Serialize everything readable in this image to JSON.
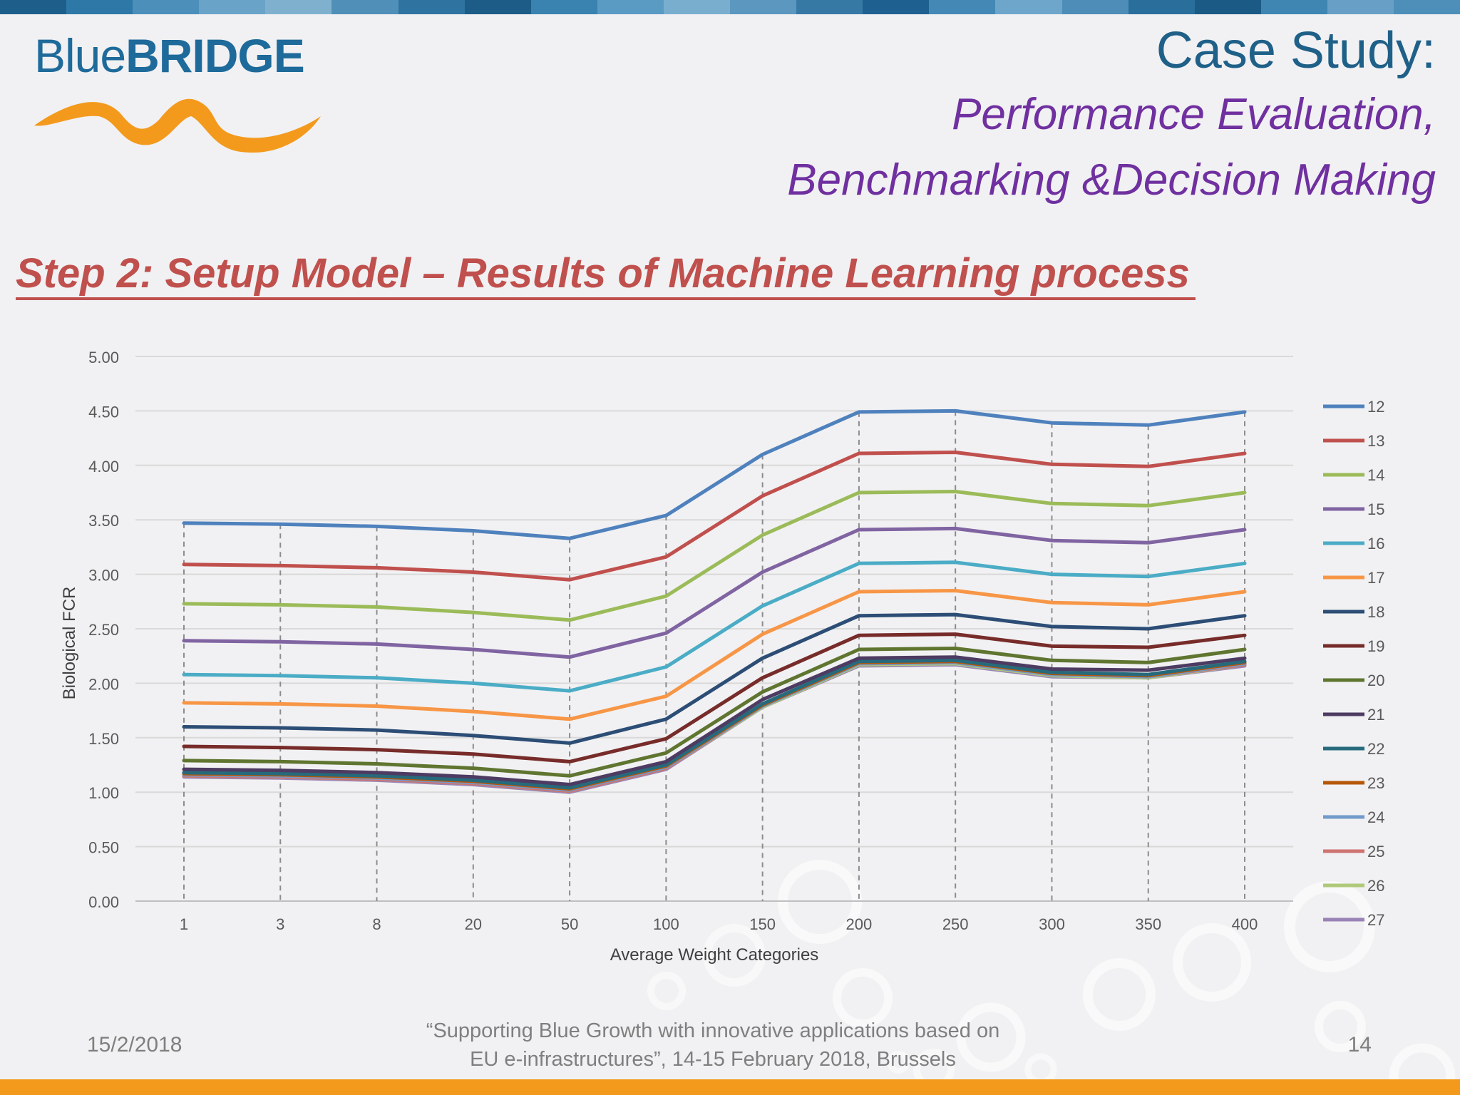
{
  "topbar_colors": [
    "#1d5f8a",
    "#2e78a8",
    "#4b8fba",
    "#6aa3c8",
    "#7fb1cf",
    "#4f8fb8",
    "#2f74a1",
    "#1c5c86",
    "#3a83b0",
    "#5a9bc4",
    "#7aaecf",
    "#5b97bf",
    "#3679a5",
    "#1e6190",
    "#4489b5",
    "#6ea6cb",
    "#4d8db7",
    "#2a6f9c",
    "#1a5a85",
    "#3f86b2",
    "#679fc6",
    "#4e8fb9"
  ],
  "logo": {
    "text_light": "Blue",
    "text_bold": "BRIDGE"
  },
  "header": {
    "case_title": "Case Study:",
    "subtitle_line1": "Performance Evaluation,",
    "subtitle_line2": "Benchmarking &Decision Making"
  },
  "step_title": "Step 2: Setup Model – Results of Machine Learning process",
  "chart_data": {
    "type": "line",
    "xlabel": "Average Weight Categories",
    "ylabel": "Biological FCR",
    "ylim": [
      0,
      5
    ],
    "yticks": [
      "0.00",
      "0.50",
      "1.00",
      "1.50",
      "2.00",
      "2.50",
      "3.00",
      "3.50",
      "4.00",
      "4.50",
      "5.00"
    ],
    "categories": [
      "1",
      "3",
      "8",
      "20",
      "50",
      "100",
      "150",
      "200",
      "250",
      "300",
      "350",
      "400"
    ],
    "grid": true,
    "legend_position": "right",
    "series": [
      {
        "name": "12",
        "color": "#4f81bd",
        "values": [
          3.47,
          3.46,
          3.44,
          3.4,
          3.33,
          3.54,
          4.1,
          4.49,
          4.5,
          4.39,
          4.37,
          4.49
        ]
      },
      {
        "name": "13",
        "color": "#c0504d",
        "values": [
          3.09,
          3.08,
          3.06,
          3.02,
          2.95,
          3.16,
          3.72,
          4.11,
          4.12,
          4.01,
          3.99,
          4.11
        ]
      },
      {
        "name": "14",
        "color": "#9bbb59",
        "values": [
          2.73,
          2.72,
          2.7,
          2.65,
          2.58,
          2.8,
          3.36,
          3.75,
          3.76,
          3.65,
          3.63,
          3.75
        ]
      },
      {
        "name": "15",
        "color": "#8064a2",
        "values": [
          2.39,
          2.38,
          2.36,
          2.31,
          2.24,
          2.46,
          3.02,
          3.41,
          3.42,
          3.31,
          3.29,
          3.41
        ]
      },
      {
        "name": "16",
        "color": "#4bacc6",
        "values": [
          2.08,
          2.07,
          2.05,
          2.0,
          1.93,
          2.15,
          2.71,
          3.1,
          3.11,
          3.0,
          2.98,
          3.1
        ]
      },
      {
        "name": "17",
        "color": "#f79646",
        "values": [
          1.82,
          1.81,
          1.79,
          1.74,
          1.67,
          1.88,
          2.45,
          2.84,
          2.85,
          2.74,
          2.72,
          2.84
        ]
      },
      {
        "name": "18",
        "color": "#2c4d75",
        "values": [
          1.6,
          1.59,
          1.57,
          1.52,
          1.45,
          1.67,
          2.23,
          2.62,
          2.63,
          2.52,
          2.5,
          2.62
        ]
      },
      {
        "name": "19",
        "color": "#772c2a",
        "values": [
          1.42,
          1.41,
          1.39,
          1.35,
          1.28,
          1.49,
          2.05,
          2.44,
          2.45,
          2.34,
          2.33,
          2.44
        ]
      },
      {
        "name": "20",
        "color": "#5f7530",
        "values": [
          1.29,
          1.28,
          1.26,
          1.22,
          1.15,
          1.36,
          1.92,
          2.31,
          2.32,
          2.21,
          2.19,
          2.31
        ]
      },
      {
        "name": "21",
        "color": "#4d3b62",
        "values": [
          1.21,
          1.2,
          1.18,
          1.14,
          1.07,
          1.28,
          1.85,
          2.23,
          2.24,
          2.13,
          2.12,
          2.23
        ]
      },
      {
        "name": "22",
        "color": "#276a7c",
        "values": [
          1.18,
          1.17,
          1.15,
          1.11,
          1.04,
          1.25,
          1.81,
          2.2,
          2.21,
          2.1,
          2.08,
          2.2
        ]
      },
      {
        "name": "23",
        "color": "#b65708",
        "values": [
          1.17,
          1.16,
          1.14,
          1.1,
          1.03,
          1.24,
          1.8,
          2.19,
          2.2,
          2.09,
          2.07,
          2.19
        ]
      },
      {
        "name": "24",
        "color": "#729aca",
        "values": [
          1.16,
          1.15,
          1.13,
          1.09,
          1.02,
          1.23,
          1.79,
          2.18,
          2.19,
          2.08,
          2.06,
          2.18
        ]
      },
      {
        "name": "25",
        "color": "#cd7371",
        "values": [
          1.15,
          1.14,
          1.12,
          1.08,
          1.01,
          1.22,
          1.79,
          2.18,
          2.19,
          2.08,
          2.06,
          2.17
        ]
      },
      {
        "name": "26",
        "color": "#afc97a",
        "values": [
          1.15,
          1.14,
          1.12,
          1.08,
          1.01,
          1.22,
          1.78,
          2.17,
          2.18,
          2.07,
          2.05,
          2.17
        ]
      },
      {
        "name": "27",
        "color": "#9983b5",
        "values": [
          1.14,
          1.13,
          1.11,
          1.07,
          1.0,
          1.21,
          1.78,
          2.16,
          2.17,
          2.06,
          2.05,
          2.16
        ]
      }
    ]
  },
  "footer": {
    "date": "15/2/2018",
    "quote_line1": "“Supporting Blue Growth with innovative applications based on",
    "quote_line2": "EU e-infrastructures”, 14-15 February 2018, Brussels",
    "page": "14"
  }
}
